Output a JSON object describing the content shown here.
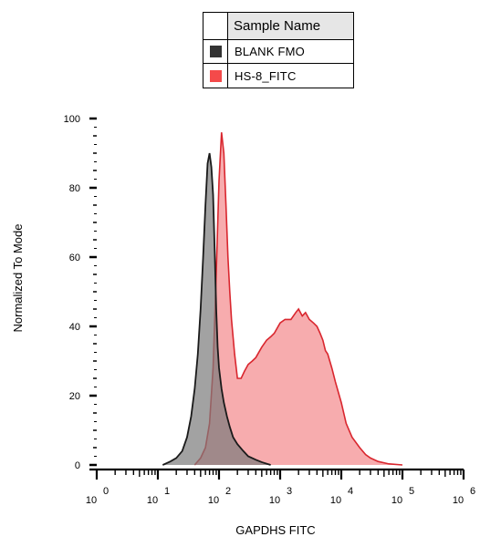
{
  "chart_data": {
    "type": "area",
    "title": "",
    "xlabel": "GAPDHS FITC",
    "ylabel": "Normalized To Mode",
    "x_scale": "log",
    "xlim": [
      1,
      1000000
    ],
    "ylim": [
      0,
      100
    ],
    "x_ticks": [
      {
        "base": "10",
        "exp": "0",
        "value": 1
      },
      {
        "base": "10",
        "exp": "1",
        "value": 10
      },
      {
        "base": "10",
        "exp": "2",
        "value": 100
      },
      {
        "base": "10",
        "exp": "3",
        "value": 1000
      },
      {
        "base": "10",
        "exp": "4",
        "value": 10000
      },
      {
        "base": "10",
        "exp": "5",
        "value": 100000
      },
      {
        "base": "10",
        "exp": "6",
        "value": 1000000
      }
    ],
    "y_ticks": [
      "0",
      "20",
      "40",
      "60",
      "80",
      "100"
    ],
    "legend": {
      "title": "Sample Name",
      "placement": "top-center",
      "entries": [
        {
          "label": "BLANK FMO",
          "color": "#333333"
        },
        {
          "label": "HS-8_FITC",
          "color": "#f44a4a"
        }
      ]
    },
    "series": [
      {
        "name": "BLANK FMO",
        "fill": "#7a7a7a",
        "stroke": "#1a1a1a",
        "x": [
          12,
          16,
          20,
          25,
          30,
          35,
          40,
          45,
          50,
          55,
          60,
          65,
          70,
          75,
          80,
          85,
          90,
          95,
          100,
          110,
          120,
          135,
          150,
          170,
          200,
          250,
          300,
          400,
          500,
          700
        ],
        "y": [
          0,
          1,
          2,
          4,
          8,
          14,
          22,
          32,
          45,
          60,
          75,
          87,
          90,
          86,
          78,
          62,
          45,
          34,
          28,
          22,
          18,
          14,
          11,
          8,
          6,
          4,
          2.5,
          1.5,
          0.8,
          0
        ]
      },
      {
        "name": "HS-8_FITC",
        "fill": "#f7a8aa",
        "stroke": "#d9262e",
        "x": [
          40,
          50,
          60,
          70,
          80,
          90,
          100,
          110,
          120,
          130,
          140,
          150,
          160,
          180,
          200,
          230,
          260,
          300,
          350,
          400,
          500,
          600,
          700,
          800,
          1000,
          1200,
          1500,
          1800,
          2000,
          2300,
          2600,
          3000,
          3500,
          4000,
          4500,
          5000,
          5500,
          6000,
          7000,
          8000,
          10000,
          12000,
          15000,
          20000,
          25000,
          30000,
          40000,
          60000,
          100000
        ],
        "y": [
          0,
          2,
          5,
          12,
          28,
          55,
          82,
          96,
          90,
          75,
          60,
          50,
          42,
          32,
          25,
          25,
          27,
          29,
          30,
          31,
          34,
          36,
          37,
          38,
          41,
          42,
          42,
          44,
          45,
          43,
          44,
          42,
          41,
          40,
          38,
          36,
          33,
          32,
          28,
          24,
          18,
          12,
          8,
          5,
          3,
          2,
          1,
          0.3,
          0
        ]
      }
    ]
  }
}
